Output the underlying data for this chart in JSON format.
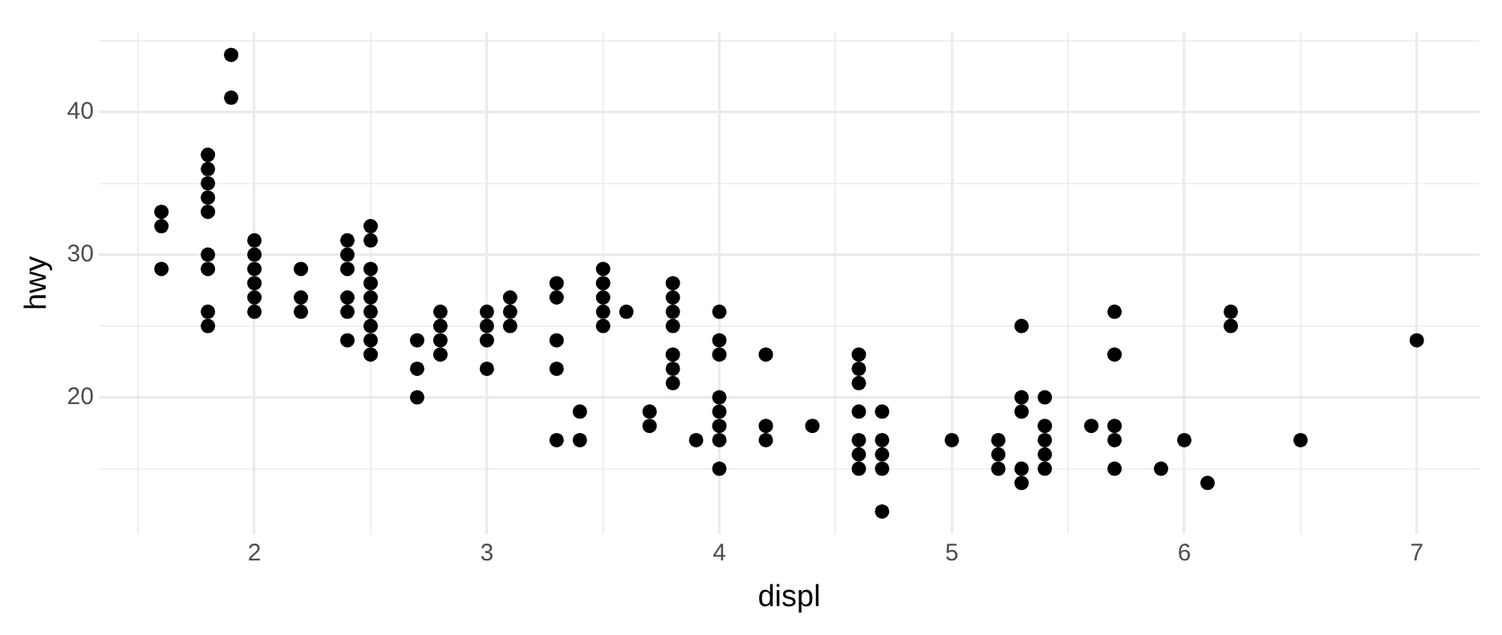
{
  "chart_data": {
    "type": "scatter",
    "xlabel": "displ",
    "ylabel": "hwy",
    "color": "#000000",
    "marker": "circle",
    "grid": true,
    "xlim": [
      1.33,
      7.27
    ],
    "ylim": [
      10.4,
      45.6
    ],
    "xticks": [
      {
        "value": 1.5,
        "label": null
      },
      2,
      {
        "value": 2.5,
        "label": null
      },
      3,
      {
        "value": 3.5,
        "label": null
      },
      4,
      {
        "value": 4.5,
        "label": null
      },
      5,
      {
        "value": 5.5,
        "label": null
      },
      6,
      {
        "value": 6.5,
        "label": null
      },
      7
    ],
    "yticks": [
      {
        "value": 15,
        "label": null
      },
      20,
      {
        "value": 25,
        "label": null
      },
      30,
      {
        "value": 35,
        "label": null
      },
      40,
      {
        "value": 45,
        "label": null
      }
    ],
    "x": [
      1.6,
      1.6,
      1.6,
      1.8,
      1.8,
      1.8,
      1.8,
      1.8,
      1.8,
      1.8,
      1.8,
      1.8,
      1.9,
      1.9,
      2,
      2,
      2,
      2,
      2,
      2,
      2.2,
      2.2,
      2.2,
      2.4,
      2.4,
      2.4,
      2.4,
      2.4,
      2.4,
      2.5,
      2.5,
      2.5,
      2.5,
      2.5,
      2.5,
      2.5,
      2.5,
      2.5,
      2.7,
      2.7,
      2.7,
      2.8,
      2.8,
      2.8,
      2.8,
      3,
      3,
      3,
      3,
      3.1,
      3.1,
      3.1,
      3.3,
      3.3,
      3.3,
      3.3,
      3.3,
      3.4,
      3.4,
      3.5,
      3.5,
      3.5,
      3.5,
      3.5,
      3.6,
      3.7,
      3.7,
      3.8,
      3.8,
      3.8,
      3.8,
      3.8,
      3.8,
      3.8,
      3.9,
      4,
      4,
      4,
      4,
      4,
      4,
      4,
      4,
      4.2,
      4.2,
      4.2,
      4.4,
      4.6,
      4.6,
      4.6,
      4.6,
      4.6,
      4.6,
      4.6,
      4.7,
      4.7,
      4.7,
      4.7,
      4.7,
      5,
      5.2,
      5.2,
      5.2,
      5.3,
      5.3,
      5.3,
      5.3,
      5.3,
      5.4,
      5.4,
      5.4,
      5.4,
      5.4,
      5.6,
      5.7,
      5.7,
      5.7,
      5.7,
      5.7,
      5.9,
      6,
      6.1,
      6.2,
      6.2,
      6.5,
      7
    ],
    "values": [
      33,
      32,
      29,
      37,
      36,
      35,
      34,
      33,
      30,
      29,
      26,
      25,
      44,
      41,
      31,
      30,
      29,
      28,
      27,
      26,
      29,
      27,
      26,
      31,
      30,
      29,
      27,
      26,
      24,
      32,
      31,
      29,
      28,
      27,
      26,
      25,
      24,
      23,
      24,
      22,
      20,
      26,
      25,
      24,
      23,
      26,
      25,
      24,
      22,
      27,
      26,
      25,
      28,
      27,
      24,
      22,
      17,
      19,
      17,
      29,
      28,
      27,
      26,
      25,
      26,
      19,
      18,
      28,
      27,
      26,
      25,
      23,
      22,
      21,
      17,
      26,
      24,
      23,
      20,
      19,
      18,
      17,
      15,
      23,
      18,
      17,
      18,
      23,
      22,
      21,
      19,
      17,
      16,
      15,
      19,
      17,
      16,
      15,
      12,
      17,
      17,
      16,
      15,
      25,
      20,
      19,
      15,
      14,
      20,
      18,
      17,
      16,
      15,
      18,
      26,
      23,
      18,
      17,
      15,
      15,
      17,
      14,
      26,
      25,
      17,
      24
    ]
  }
}
